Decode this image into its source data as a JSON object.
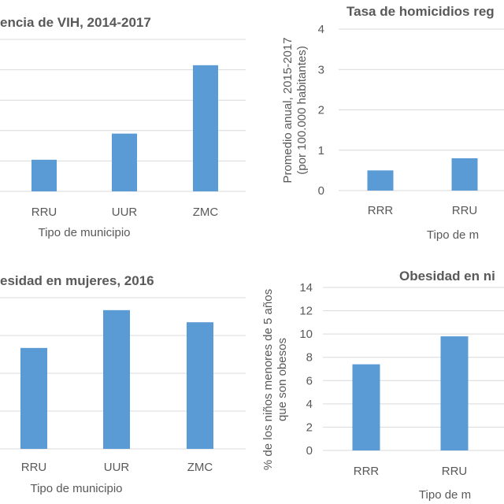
{
  "chart_data": [
    {
      "type": "bar",
      "title": "encia de VIH, 2014-2017",
      "xlabel": "Tipo de municipio",
      "ylabel": "",
      "categories": [
        "RRU",
        "UUR",
        "ZMC"
      ],
      "values": [
        1.04,
        1.9,
        4.15
      ],
      "yticks": [],
      "ylim": [
        0,
        5
      ],
      "grid": true,
      "color": "#5b9bd5"
    },
    {
      "type": "bar",
      "title": "Tasa de homicidios reg",
      "xlabel": "Tipo de m",
      "ylabel": [
        "Promedio anual, 2015-2017",
        "(por 100.000 habitantes)"
      ],
      "categories": [
        "RRR",
        "RRU"
      ],
      "values": [
        0.5,
        0.8
      ],
      "yticks": [
        "0",
        "1",
        "2",
        "3",
        "4"
      ],
      "ylim": [
        0,
        4
      ],
      "grid": true,
      "color": "#5b9bd5"
    },
    {
      "type": "bar",
      "title": "esidad en mujeres, 2016",
      "xlabel": "Tipo de municipio",
      "ylabel": "",
      "categories": [
        "RRU",
        "UUR",
        "ZMC"
      ],
      "values": [
        2.67,
        3.67,
        3.35
      ],
      "yticks": [],
      "ylim": [
        0,
        4
      ],
      "grid": true,
      "color": "#5b9bd5"
    },
    {
      "type": "bar",
      "title": "Obesidad en ni",
      "xlabel": "Tipo de m",
      "ylabel": [
        "% de los niños menores de 5 años",
        "que son obesos"
      ],
      "categories": [
        "RRR",
        "RRU"
      ],
      "values": [
        7.4,
        9.8
      ],
      "yticks": [
        "0",
        "2",
        "4",
        "6",
        "8",
        "10",
        "12",
        "14"
      ],
      "ylim": [
        0,
        14
      ],
      "grid": true,
      "color": "#5b9bd5"
    }
  ]
}
